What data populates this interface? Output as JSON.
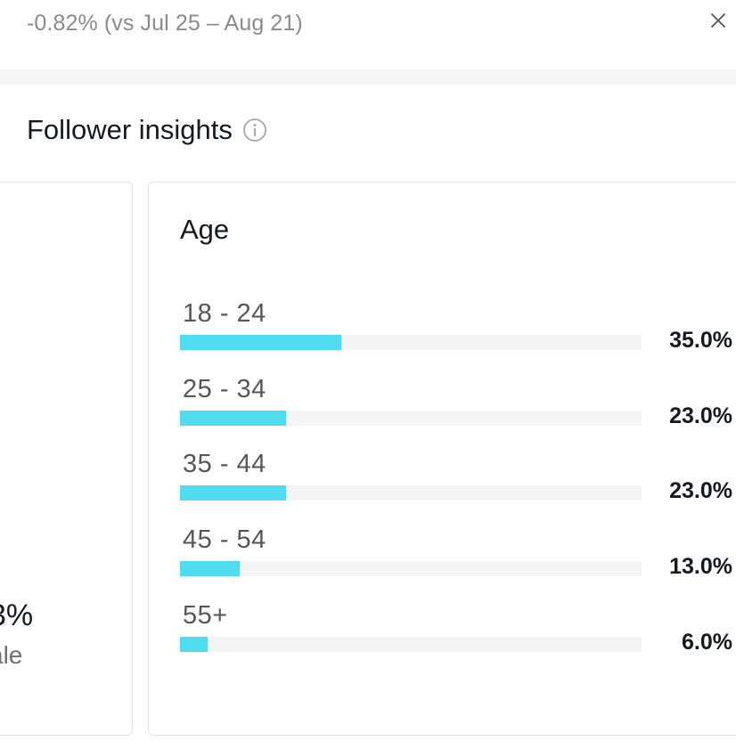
{
  "header": {
    "delta_text": "-0.82% (vs Jul 25 – Aug 21)",
    "close_icon": "close-icon"
  },
  "section": {
    "title": "Follower insights",
    "info_icon": "info-icon"
  },
  "gender_card": {
    "partial_percent": "3%",
    "partial_label": "ale"
  },
  "age_card": {
    "title": "Age",
    "bar_color": "#4fdcee",
    "rows": [
      {
        "label": "18 - 24",
        "percent_text": "35.0%",
        "value": 35.0
      },
      {
        "label": "25 - 34",
        "percent_text": "23.0%",
        "value": 23.0
      },
      {
        "label": "35 - 44",
        "percent_text": "23.0%",
        "value": 23.0
      },
      {
        "label": "45 - 54",
        "percent_text": "13.0%",
        "value": 13.0
      },
      {
        "label": "55+",
        "percent_text": "6.0%",
        "value": 6.0
      }
    ]
  }
}
